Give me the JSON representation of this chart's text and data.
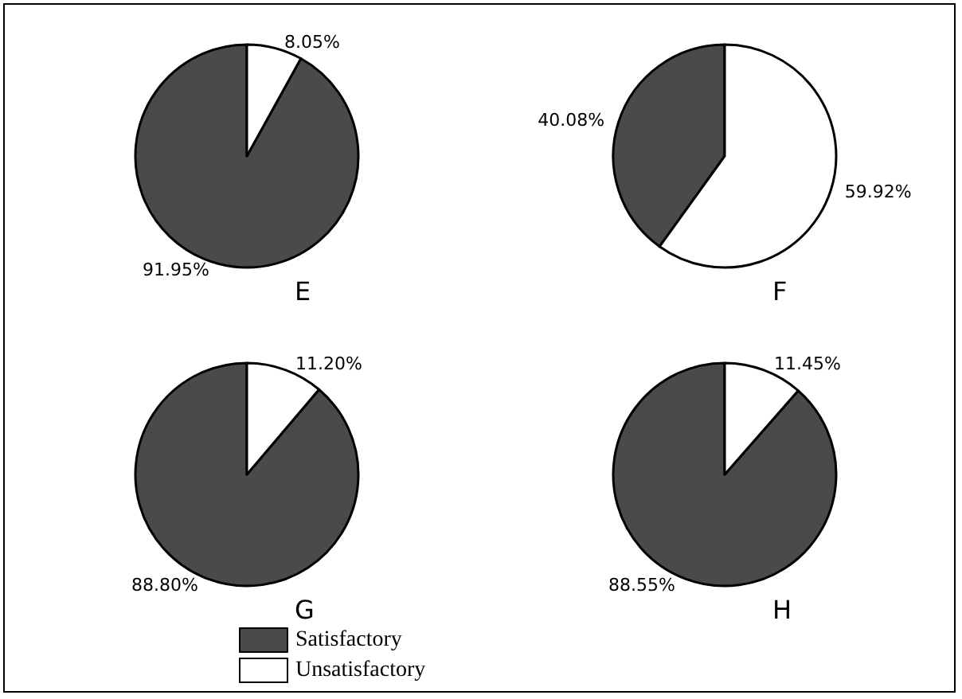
{
  "chart_data": [
    {
      "type": "pie",
      "title": "E",
      "categories": [
        null,
        null
      ],
      "values": [
        91.95,
        8.05
      ],
      "colors": [
        "#4a4a4a",
        "#ffffff"
      ],
      "value_labels": [
        "91.95%",
        "8.05%"
      ]
    },
    {
      "type": "pie",
      "title": "F",
      "categories": [
        null,
        null
      ],
      "values": [
        40.08,
        59.92
      ],
      "colors": [
        "#4a4a4a",
        "#ffffff"
      ],
      "value_labels": [
        "40.08%",
        "59.92%"
      ]
    },
    {
      "type": "pie",
      "title": "G",
      "categories": [
        "Satisfactory",
        "Unsatisfactory"
      ],
      "values": [
        88.8,
        11.2
      ],
      "colors": [
        "#4a4a4a",
        "#ffffff"
      ],
      "value_labels": [
        "88.80%",
        "11.20%"
      ],
      "legend": "bottom"
    },
    {
      "type": "pie",
      "title": "H",
      "categories": [
        null,
        null
      ],
      "values": [
        88.55,
        11.45
      ],
      "colors": [
        "#4a4a4a",
        "#ffffff"
      ],
      "value_labels": [
        "88.55%",
        "11.45%"
      ]
    }
  ]
}
